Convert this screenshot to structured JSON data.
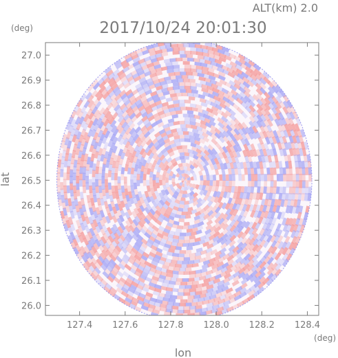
{
  "chart_data": {
    "type": "heatmap",
    "subtitle": "ALT(km) 2.0",
    "title": "2017/10/24 20:01:30",
    "xlabel": "lon",
    "ylabel": "lat",
    "xunit": "(deg)",
    "yunit": "(deg)",
    "xlim": [
      127.25,
      128.45
    ],
    "ylim": [
      25.96,
      27.05
    ],
    "x_ticks": [
      "127.4",
      "127.6",
      "127.8",
      "128.0",
      "128.2",
      "128.4"
    ],
    "y_ticks": [
      "26.0",
      "26.1",
      "26.2",
      "26.3",
      "26.4",
      "26.5",
      "26.6",
      "26.7",
      "26.8",
      "26.9",
      "27.0"
    ],
    "center": {
      "lon": 127.86,
      "lat": 26.5
    },
    "radius_deg": 0.56,
    "field_shape": "circular radar scan",
    "colors": {
      "positive": "#f4a0a0",
      "negative": "#a8a8f4",
      "neutral": "#ffffff",
      "axis": "#7a7a7a"
    }
  }
}
